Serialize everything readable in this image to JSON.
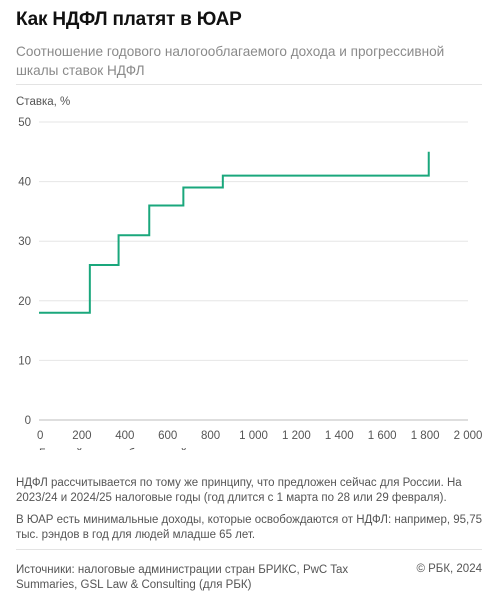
{
  "header": {
    "title": "Как НДФЛ платят в ЮАР",
    "subtitle": "Соотношение годового налогооблагаемого дохода и прогрессивной шкалы ставок НДФЛ"
  },
  "chart_data": {
    "type": "line",
    "ylabel": "Ставка, %",
    "xlabel": "Годовой налогооблагаемый доход, тыс. рэндов",
    "xlim": [
      0,
      2000
    ],
    "ylim": [
      0,
      50
    ],
    "x_ticks": [
      0,
      200,
      400,
      600,
      800,
      1000,
      1200,
      1400,
      1600,
      1800,
      2000
    ],
    "x_tick_labels": [
      "0",
      "200",
      "400",
      "600",
      "800",
      "1 000",
      "1 200",
      "1 400",
      "1 600",
      "1 800",
      "2 000"
    ],
    "y_ticks": [
      0,
      10,
      20,
      30,
      40,
      50
    ],
    "y_tick_labels": [
      "0",
      "10",
      "20",
      "30",
      "40",
      "50"
    ],
    "grid": "horizontal",
    "series": [
      {
        "color": "#1aa77c",
        "step": true,
        "x": [
          0,
          237,
          371,
          514,
          673,
          857,
          1817
        ],
        "y": [
          18,
          26,
          31,
          36,
          39,
          41,
          45
        ]
      }
    ]
  },
  "notes": [
    "НДФЛ рассчитывается по тому же принципу, что предложен сейчас для России. На 2023/24 и 2024/25 налоговые годы (год длится с 1 марта по 28 или 29 февраля).",
    "В ЮАР есть минимальные доходы, которые освобождаются от НДФЛ: например, 95,75 тыс. рэндов в год для людей младше 65 лет."
  ],
  "footer": {
    "sources": "Источники: налоговые администрации стран БРИКС, PwC Tax Summaries, GSL Law & Consulting (для РБК)",
    "copyright": "© РБК, 2024"
  }
}
